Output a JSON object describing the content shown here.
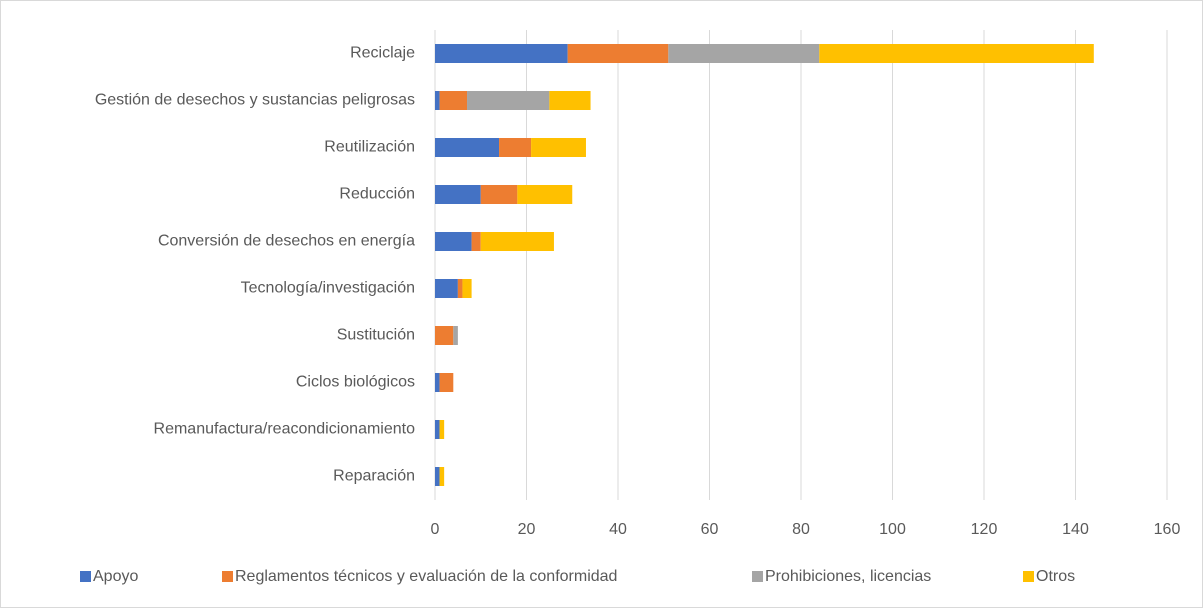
{
  "chart_data": {
    "type": "bar",
    "orientation": "horizontal",
    "stacked": true,
    "categories": [
      "Reciclaje",
      "Gestión de desechos y sustancias peligrosas",
      "Reutilización",
      "Reducción",
      "Conversión de desechos en energía",
      "Tecnología/investigación",
      "Sustitución",
      "Ciclos biológicos",
      "Remanufactura/reacondicionamiento",
      "Reparación"
    ],
    "series": [
      {
        "name": "Apoyo",
        "color": "#4472c4",
        "values": [
          29,
          1,
          14,
          10,
          8,
          5,
          0,
          1,
          1,
          1
        ]
      },
      {
        "name": "Reglamentos técnicos y evaluación de la conformidad",
        "color": "#ed7d31",
        "values": [
          22,
          6,
          7,
          8,
          2,
          1,
          4,
          3,
          0,
          0
        ]
      },
      {
        "name": "Prohibiciones, licencias",
        "color": "#a5a5a5",
        "values": [
          33,
          18,
          0,
          0,
          0,
          0,
          1,
          0,
          0,
          0
        ]
      },
      {
        "name": "Otros",
        "color": "#ffc000",
        "values": [
          60,
          9,
          12,
          12,
          16,
          2,
          0,
          0,
          1,
          1
        ]
      }
    ],
    "xlim": [
      0,
      160
    ],
    "xticks": [
      0,
      20,
      40,
      60,
      80,
      100,
      120,
      140,
      160
    ],
    "grid": true,
    "legend": "bottom"
  }
}
